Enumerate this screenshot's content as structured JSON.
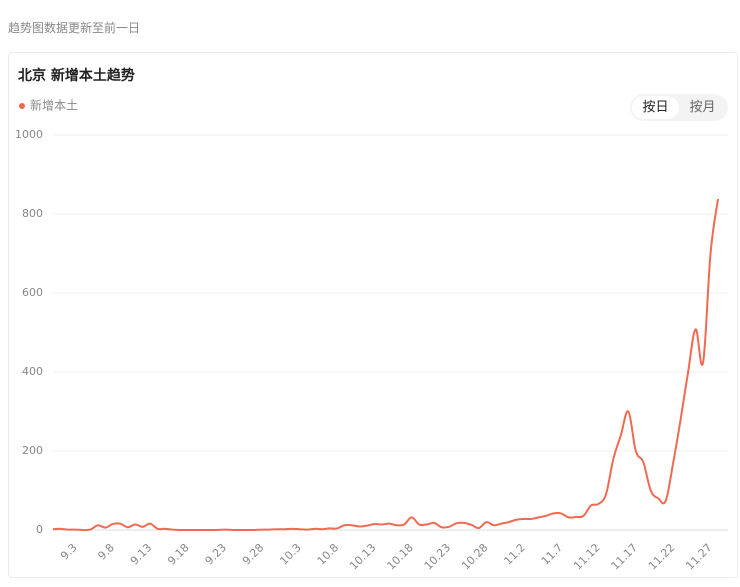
{
  "header": {
    "note": "趋势图数据更新至前一日"
  },
  "toggle": {
    "options": [
      "按日",
      "按月"
    ],
    "selected": 0
  },
  "chart_data": {
    "type": "line",
    "title": "北京 新增本土趋势",
    "categories": [
      null,
      null,
      null,
      "9.3",
      null,
      null,
      null,
      null,
      "9.8",
      null,
      null,
      null,
      null,
      "9.13",
      null,
      null,
      null,
      null,
      "9.18",
      null,
      null,
      null,
      null,
      "9.23",
      null,
      null,
      null,
      null,
      "9.28",
      null,
      null,
      null,
      null,
      "10.3",
      null,
      null,
      null,
      null,
      "10.8",
      null,
      null,
      null,
      null,
      "10.13",
      null,
      null,
      null,
      null,
      "10.18",
      null,
      null,
      null,
      null,
      "10.23",
      null,
      null,
      null,
      null,
      "10.28",
      null,
      null,
      null,
      null,
      "11.2",
      null,
      null,
      null,
      null,
      "11.7",
      null,
      null,
      null,
      null,
      "11.12",
      null,
      null,
      null,
      null,
      "11.17",
      null,
      null,
      null,
      null,
      "11.22",
      null,
      null,
      null,
      null,
      "11.27",
      null
    ],
    "series": [
      {
        "name": "新增本土",
        "color": "#ee6a50",
        "values": [
          2,
          3,
          1,
          1,
          0,
          1,
          12,
          6,
          15,
          16,
          7,
          14,
          8,
          16,
          3,
          3,
          1,
          0,
          0,
          0,
          0,
          0,
          0,
          1,
          0,
          0,
          0,
          0,
          1,
          1,
          2,
          2,
          3,
          2,
          1,
          3,
          2,
          4,
          4,
          12,
          12,
          9,
          11,
          15,
          14,
          16,
          12,
          14,
          32,
          14,
          14,
          18,
          7,
          8,
          17,
          18,
          13,
          5,
          20,
          12,
          16,
          20,
          26,
          28,
          28,
          32,
          36,
          42,
          42,
          32,
          33,
          36,
          62,
          66,
          90,
          180,
          240,
          300,
          200,
          172,
          100,
          80,
          74,
          170,
          280,
          400,
          508,
          424,
          700,
          838
        ]
      }
    ],
    "ylim": [
      0,
      1000
    ],
    "yticks": [
      0,
      200,
      400,
      600,
      800,
      1000
    ],
    "grid": true
  }
}
